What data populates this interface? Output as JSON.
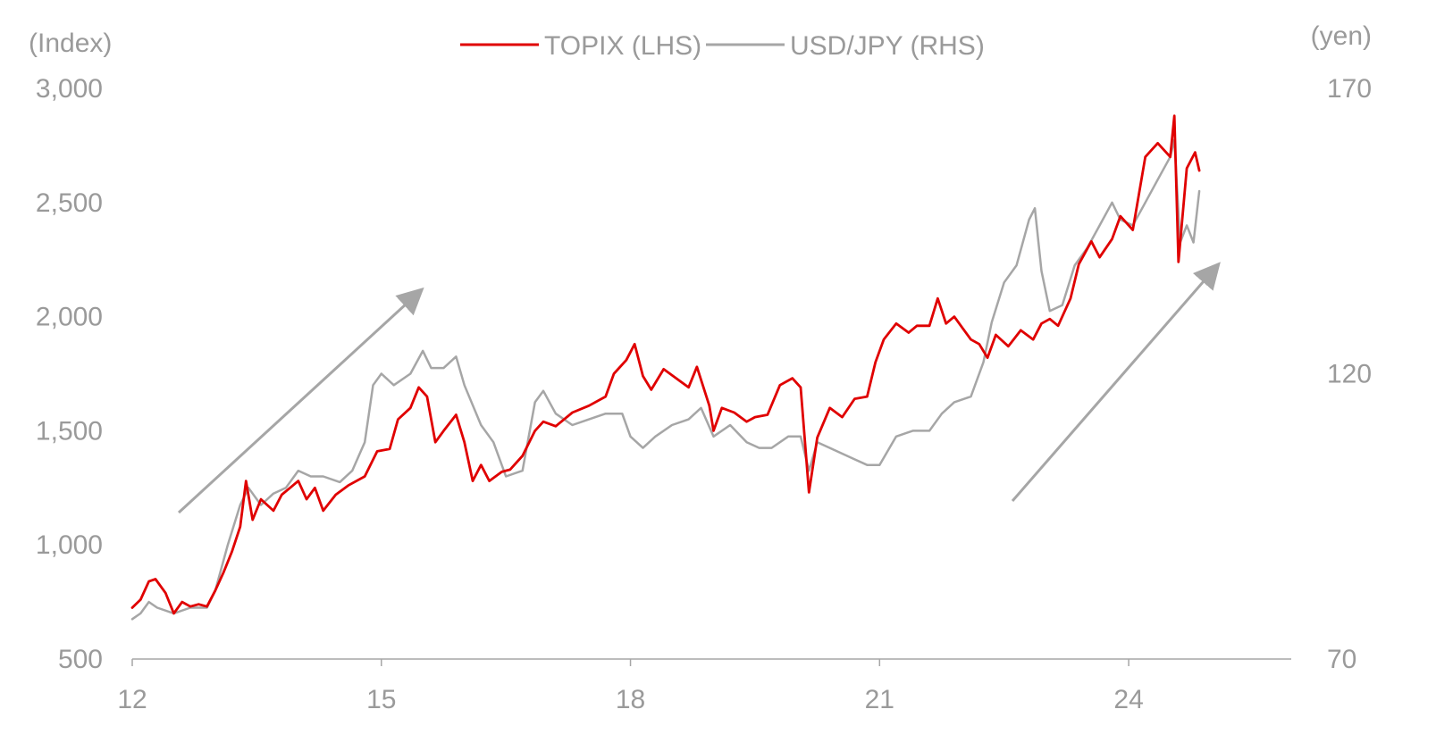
{
  "chart_data": {
    "type": "line",
    "y_left_unit": "(Index)",
    "y_right_unit": "(yen)",
    "x_ticks": [
      "12",
      "15",
      "18",
      "21",
      "24"
    ],
    "x_range": [
      2012,
      2025.85
    ],
    "y_left_ticks": [
      "500",
      "1,000",
      "1,500",
      "2,000",
      "2,500",
      "3,000"
    ],
    "y_left_range": [
      500,
      3000
    ],
    "y_right_ticks": [
      "70",
      "120",
      "170"
    ],
    "y_right_range": [
      70,
      170
    ],
    "grid": false,
    "legend_position": "top-center",
    "annotations": [
      "up-arrow 2012-2015",
      "up-arrow 2022-2024"
    ],
    "series": [
      {
        "name": "TOPIX (LHS)",
        "axis": "left",
        "color": "#e00000",
        "points": [
          [
            2012.0,
            725
          ],
          [
            2012.1,
            760
          ],
          [
            2012.2,
            840
          ],
          [
            2012.28,
            850
          ],
          [
            2012.4,
            790
          ],
          [
            2012.5,
            700
          ],
          [
            2012.6,
            750
          ],
          [
            2012.7,
            730
          ],
          [
            2012.8,
            740
          ],
          [
            2012.9,
            730
          ],
          [
            2013.0,
            800
          ],
          [
            2013.1,
            880
          ],
          [
            2013.2,
            970
          ],
          [
            2013.3,
            1080
          ],
          [
            2013.37,
            1280
          ],
          [
            2013.45,
            1110
          ],
          [
            2013.55,
            1200
          ],
          [
            2013.7,
            1150
          ],
          [
            2013.8,
            1220
          ],
          [
            2013.9,
            1250
          ],
          [
            2014.0,
            1280
          ],
          [
            2014.1,
            1200
          ],
          [
            2014.2,
            1250
          ],
          [
            2014.3,
            1150
          ],
          [
            2014.45,
            1220
          ],
          [
            2014.6,
            1260
          ],
          [
            2014.8,
            1300
          ],
          [
            2014.95,
            1410
          ],
          [
            2015.1,
            1420
          ],
          [
            2015.2,
            1550
          ],
          [
            2015.35,
            1600
          ],
          [
            2015.45,
            1690
          ],
          [
            2015.55,
            1650
          ],
          [
            2015.65,
            1450
          ],
          [
            2015.75,
            1500
          ],
          [
            2015.9,
            1570
          ],
          [
            2016.0,
            1450
          ],
          [
            2016.1,
            1280
          ],
          [
            2016.2,
            1350
          ],
          [
            2016.3,
            1280
          ],
          [
            2016.45,
            1320
          ],
          [
            2016.55,
            1330
          ],
          [
            2016.7,
            1390
          ],
          [
            2016.85,
            1500
          ],
          [
            2016.95,
            1540
          ],
          [
            2017.1,
            1520
          ],
          [
            2017.3,
            1580
          ],
          [
            2017.5,
            1610
          ],
          [
            2017.7,
            1650
          ],
          [
            2017.8,
            1750
          ],
          [
            2017.95,
            1810
          ],
          [
            2018.05,
            1880
          ],
          [
            2018.15,
            1740
          ],
          [
            2018.25,
            1680
          ],
          [
            2018.4,
            1770
          ],
          [
            2018.55,
            1730
          ],
          [
            2018.7,
            1690
          ],
          [
            2018.8,
            1780
          ],
          [
            2018.95,
            1610
          ],
          [
            2019.0,
            1500
          ],
          [
            2019.1,
            1600
          ],
          [
            2019.25,
            1580
          ],
          [
            2019.4,
            1540
          ],
          [
            2019.5,
            1560
          ],
          [
            2019.65,
            1570
          ],
          [
            2019.8,
            1700
          ],
          [
            2019.95,
            1730
          ],
          [
            2020.05,
            1690
          ],
          [
            2020.15,
            1230
          ],
          [
            2020.25,
            1470
          ],
          [
            2020.4,
            1600
          ],
          [
            2020.55,
            1560
          ],
          [
            2020.7,
            1640
          ],
          [
            2020.85,
            1650
          ],
          [
            2020.95,
            1800
          ],
          [
            2021.05,
            1900
          ],
          [
            2021.2,
            1970
          ],
          [
            2021.35,
            1930
          ],
          [
            2021.45,
            1960
          ],
          [
            2021.6,
            1960
          ],
          [
            2021.7,
            2080
          ],
          [
            2021.8,
            1970
          ],
          [
            2021.9,
            2000
          ],
          [
            2022.0,
            1950
          ],
          [
            2022.1,
            1900
          ],
          [
            2022.2,
            1880
          ],
          [
            2022.3,
            1820
          ],
          [
            2022.4,
            1920
          ],
          [
            2022.55,
            1870
          ],
          [
            2022.7,
            1940
          ],
          [
            2022.85,
            1900
          ],
          [
            2022.95,
            1970
          ],
          [
            2023.05,
            1990
          ],
          [
            2023.15,
            1960
          ],
          [
            2023.3,
            2080
          ],
          [
            2023.4,
            2230
          ],
          [
            2023.55,
            2330
          ],
          [
            2023.65,
            2260
          ],
          [
            2023.8,
            2340
          ],
          [
            2023.9,
            2440
          ],
          [
            2024.05,
            2380
          ],
          [
            2024.2,
            2700
          ],
          [
            2024.35,
            2760
          ],
          [
            2024.5,
            2700
          ],
          [
            2024.55,
            2880
          ],
          [
            2024.6,
            2240
          ],
          [
            2024.7,
            2650
          ],
          [
            2024.8,
            2720
          ],
          [
            2024.85,
            2640
          ]
        ]
      },
      {
        "name": "USD/JPY (RHS)",
        "axis": "right",
        "color": "#a6a6a6",
        "points": [
          [
            2012.0,
            77
          ],
          [
            2012.1,
            78
          ],
          [
            2012.2,
            80
          ],
          [
            2012.3,
            79
          ],
          [
            2012.5,
            78
          ],
          [
            2012.7,
            79
          ],
          [
            2012.9,
            79
          ],
          [
            2013.0,
            82
          ],
          [
            2013.15,
            90
          ],
          [
            2013.3,
            97
          ],
          [
            2013.4,
            100
          ],
          [
            2013.55,
            97
          ],
          [
            2013.7,
            99
          ],
          [
            2013.85,
            100
          ],
          [
            2014.0,
            103
          ],
          [
            2014.15,
            102
          ],
          [
            2014.3,
            102
          ],
          [
            2014.5,
            101
          ],
          [
            2014.65,
            103
          ],
          [
            2014.8,
            108
          ],
          [
            2014.9,
            118
          ],
          [
            2015.0,
            120
          ],
          [
            2015.15,
            118
          ],
          [
            2015.35,
            120
          ],
          [
            2015.5,
            124
          ],
          [
            2015.6,
            121
          ],
          [
            2015.75,
            121
          ],
          [
            2015.9,
            123
          ],
          [
            2016.0,
            118
          ],
          [
            2016.2,
            111
          ],
          [
            2016.35,
            108
          ],
          [
            2016.5,
            102
          ],
          [
            2016.7,
            103
          ],
          [
            2016.85,
            115
          ],
          [
            2016.95,
            117
          ],
          [
            2017.1,
            113
          ],
          [
            2017.3,
            111
          ],
          [
            2017.5,
            112
          ],
          [
            2017.7,
            113
          ],
          [
            2017.9,
            113
          ],
          [
            2018.0,
            109
          ],
          [
            2018.15,
            107
          ],
          [
            2018.3,
            109
          ],
          [
            2018.5,
            111
          ],
          [
            2018.7,
            112
          ],
          [
            2018.85,
            114
          ],
          [
            2019.0,
            109
          ],
          [
            2019.2,
            111
          ],
          [
            2019.4,
            108
          ],
          [
            2019.55,
            107
          ],
          [
            2019.7,
            107
          ],
          [
            2019.9,
            109
          ],
          [
            2020.05,
            109
          ],
          [
            2020.15,
            103
          ],
          [
            2020.25,
            108
          ],
          [
            2020.4,
            107
          ],
          [
            2020.55,
            106
          ],
          [
            2020.7,
            105
          ],
          [
            2020.85,
            104
          ],
          [
            2021.0,
            104
          ],
          [
            2021.2,
            109
          ],
          [
            2021.4,
            110
          ],
          [
            2021.6,
            110
          ],
          [
            2021.75,
            113
          ],
          [
            2021.9,
            115
          ],
          [
            2022.1,
            116
          ],
          [
            2022.25,
            122
          ],
          [
            2022.35,
            129
          ],
          [
            2022.5,
            136
          ],
          [
            2022.65,
            139
          ],
          [
            2022.8,
            147
          ],
          [
            2022.87,
            149
          ],
          [
            2022.95,
            138
          ],
          [
            2023.05,
            131
          ],
          [
            2023.2,
            132
          ],
          [
            2023.35,
            139
          ],
          [
            2023.5,
            142
          ],
          [
            2023.65,
            146
          ],
          [
            2023.8,
            150
          ],
          [
            2023.9,
            147
          ],
          [
            2024.05,
            146
          ],
          [
            2024.2,
            150
          ],
          [
            2024.35,
            154
          ],
          [
            2024.5,
            158
          ],
          [
            2024.55,
            161
          ],
          [
            2024.62,
            143
          ],
          [
            2024.7,
            146
          ],
          [
            2024.78,
            143
          ],
          [
            2024.85,
            152
          ]
        ]
      }
    ]
  }
}
